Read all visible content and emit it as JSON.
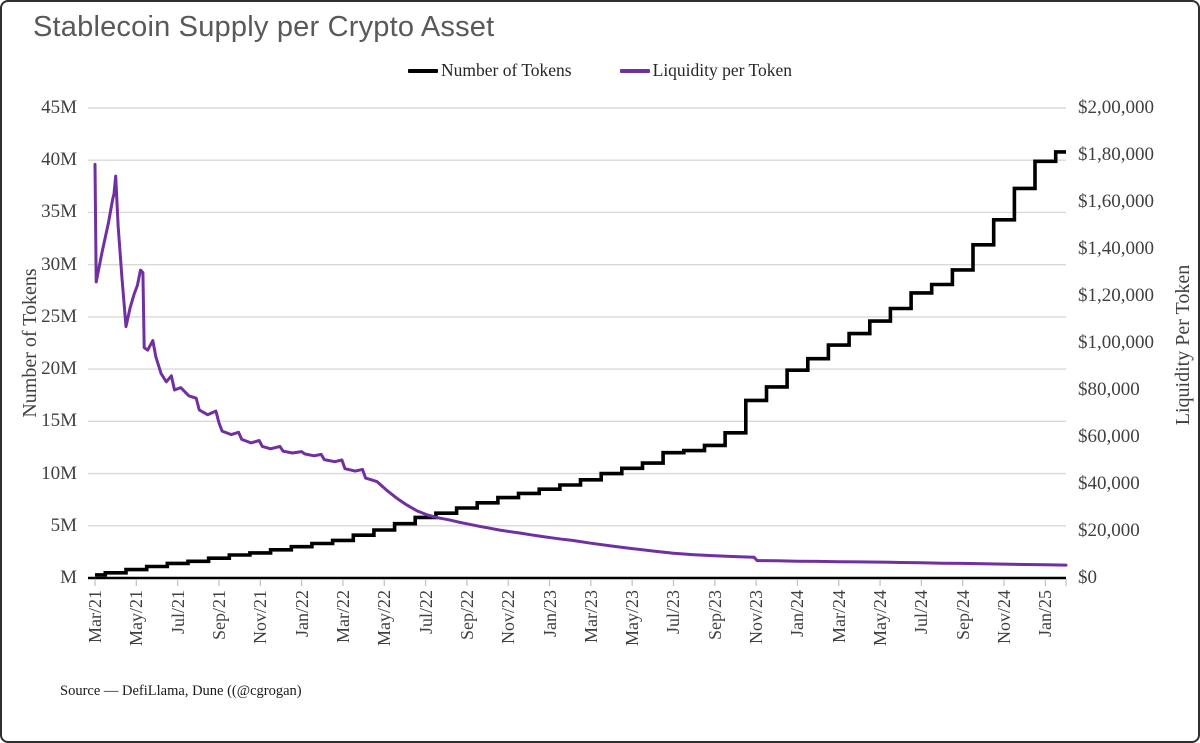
{
  "title": "Stablecoin Supply per Crypto Asset",
  "legend": {
    "items": [
      {
        "label": "Number of Tokens",
        "color": "#000000"
      },
      {
        "label": "Liquidity per Token",
        "color": "#7030A0"
      }
    ]
  },
  "left_axis": {
    "title": "Number of Tokens",
    "labels": [
      "45M",
      "40M",
      "35M",
      "30M",
      "25M",
      "20M",
      "15M",
      "10M",
      "5M",
      "M"
    ]
  },
  "right_axis": {
    "title": "Liquidity Per Token",
    "labels": [
      "$2,00,000",
      "$1,80,000",
      "$1,60,000",
      "$1,40,000",
      "$1,20,000",
      "$1,00,000",
      "$80,000",
      "$60,000",
      "$40,000",
      "$20,000",
      "$0"
    ]
  },
  "x_axis": {
    "labels": [
      "Mar/21",
      "May/21",
      "Jul/21",
      "Sep/21",
      "Nov/21",
      "Jan/22",
      "Mar/22",
      "May/22",
      "Jul/22",
      "Sep/22",
      "Nov/22",
      "Jan/23",
      "Mar/23",
      "May/23",
      "Jul/23",
      "Sep/23",
      "Nov/23",
      "Jan/24",
      "Mar/24",
      "May/24",
      "Jul/24",
      "Sep/24",
      "Nov/24",
      "Jan/25"
    ]
  },
  "source_note": "Source — DefiLlama, Dune ((@cgrogan)",
  "colors": {
    "grid": "#D9D9D9",
    "tick": "#BFBFBF",
    "axis_line": "#000000",
    "title_text": "#595959",
    "axis_text": "#404040"
  },
  "chart_data": {
    "type": "line",
    "title": "Stablecoin Supply per Crypto Asset",
    "x_start_month": "Mar/21",
    "x_end_month": "Feb/25",
    "left_axis_label": "Number of Tokens",
    "right_axis_label": "Liquidity Per Token",
    "left_axis_range": [
      0,
      45000000
    ],
    "left_axis_step": 5000000,
    "right_axis_range": [
      0,
      200000
    ],
    "right_axis_step": 20000,
    "grid": "horizontal",
    "legend_position": "top-center",
    "series": [
      {
        "name": "Number of Tokens",
        "axis": "left",
        "unit": "millions of tokens",
        "style": "step",
        "color": "#000000",
        "monthly_values_millions": [
          0.3,
          0.5,
          0.8,
          1.1,
          1.4,
          1.6,
          1.9,
          2.2,
          2.4,
          2.7,
          3.0,
          3.3,
          3.6,
          4.1,
          4.6,
          5.2,
          5.8,
          6.2,
          6.7,
          7.2,
          7.7,
          8.1,
          8.5,
          8.9,
          9.4,
          10.0,
          10.5,
          11.0,
          12.0,
          12.2,
          12.7,
          13.9,
          17.0,
          18.3,
          19.9,
          21.0,
          22.3,
          23.4,
          24.6,
          25.8,
          27.3,
          28.1,
          29.5,
          31.9,
          34.3,
          37.3,
          39.9,
          40.8
        ]
      },
      {
        "name": "Liquidity per Token",
        "axis": "right",
        "unit": "USD",
        "style": "line",
        "color": "#7030A0",
        "points_month_usd": [
          [
            0.0,
            176000
          ],
          [
            0.06,
            126000
          ],
          [
            0.35,
            139000
          ],
          [
            0.65,
            151000
          ],
          [
            0.85,
            161000
          ],
          [
            0.92,
            163500
          ],
          [
            1.0,
            171000
          ],
          [
            1.12,
            150000
          ],
          [
            1.3,
            128000
          ],
          [
            1.5,
            107000
          ],
          [
            1.7,
            115000
          ],
          [
            1.9,
            121000
          ],
          [
            2.05,
            124500
          ],
          [
            2.2,
            131000
          ],
          [
            2.32,
            130000
          ],
          [
            2.38,
            98000
          ],
          [
            2.55,
            97000
          ],
          [
            2.8,
            101000
          ],
          [
            2.95,
            94000
          ],
          [
            3.2,
            87000
          ],
          [
            3.45,
            83500
          ],
          [
            3.7,
            86000
          ],
          [
            3.85,
            80000
          ],
          [
            4.15,
            81000
          ],
          [
            4.55,
            77500
          ],
          [
            4.9,
            76500
          ],
          [
            5.05,
            71500
          ],
          [
            5.45,
            69500
          ],
          [
            5.85,
            71000
          ],
          [
            6.0,
            66000
          ],
          [
            6.15,
            62500
          ],
          [
            6.6,
            61000
          ],
          [
            6.95,
            62000
          ],
          [
            7.1,
            59000
          ],
          [
            7.55,
            57500
          ],
          [
            7.95,
            58500
          ],
          [
            8.1,
            56000
          ],
          [
            8.5,
            55000
          ],
          [
            8.95,
            56000
          ],
          [
            9.1,
            54000
          ],
          [
            9.55,
            53200
          ],
          [
            10.0,
            53800
          ],
          [
            10.15,
            52800
          ],
          [
            10.6,
            52000
          ],
          [
            10.95,
            52600
          ],
          [
            11.1,
            50400
          ],
          [
            11.6,
            49500
          ],
          [
            11.95,
            50200
          ],
          [
            12.1,
            46500
          ],
          [
            12.6,
            45500
          ],
          [
            12.95,
            46200
          ],
          [
            13.1,
            42500
          ],
          [
            13.65,
            41000
          ],
          [
            14.1,
            37500
          ],
          [
            14.6,
            34000
          ],
          [
            15.1,
            31000
          ],
          [
            15.6,
            28500
          ],
          [
            16.1,
            26800
          ],
          [
            16.6,
            25600
          ],
          [
            17.1,
            24800
          ],
          [
            17.6,
            23800
          ],
          [
            18.1,
            22900
          ],
          [
            18.6,
            22000
          ],
          [
            19.1,
            21200
          ],
          [
            19.6,
            20400
          ],
          [
            20.1,
            19700
          ],
          [
            20.6,
            19100
          ],
          [
            21.1,
            18400
          ],
          [
            21.6,
            17700
          ],
          [
            22.1,
            17100
          ],
          [
            22.6,
            16500
          ],
          [
            23.1,
            16000
          ],
          [
            24.0,
            14800
          ],
          [
            25.0,
            13600
          ],
          [
            26.0,
            12500
          ],
          [
            27.0,
            11500
          ],
          [
            28.0,
            10500
          ],
          [
            29.0,
            9900
          ],
          [
            30.0,
            9500
          ],
          [
            31.0,
            9100
          ],
          [
            31.9,
            8800
          ],
          [
            32.05,
            7400
          ],
          [
            33.0,
            7300
          ],
          [
            34.0,
            7150
          ],
          [
            35.0,
            7050
          ],
          [
            36.0,
            6950
          ],
          [
            37.0,
            6850
          ],
          [
            38.0,
            6750
          ],
          [
            39.0,
            6600
          ],
          [
            40.0,
            6450
          ],
          [
            41.0,
            6300
          ],
          [
            42.0,
            6200
          ],
          [
            43.0,
            6050
          ],
          [
            44.0,
            5900
          ],
          [
            45.0,
            5750
          ],
          [
            46.0,
            5600
          ],
          [
            47.0,
            5500
          ]
        ]
      }
    ]
  }
}
